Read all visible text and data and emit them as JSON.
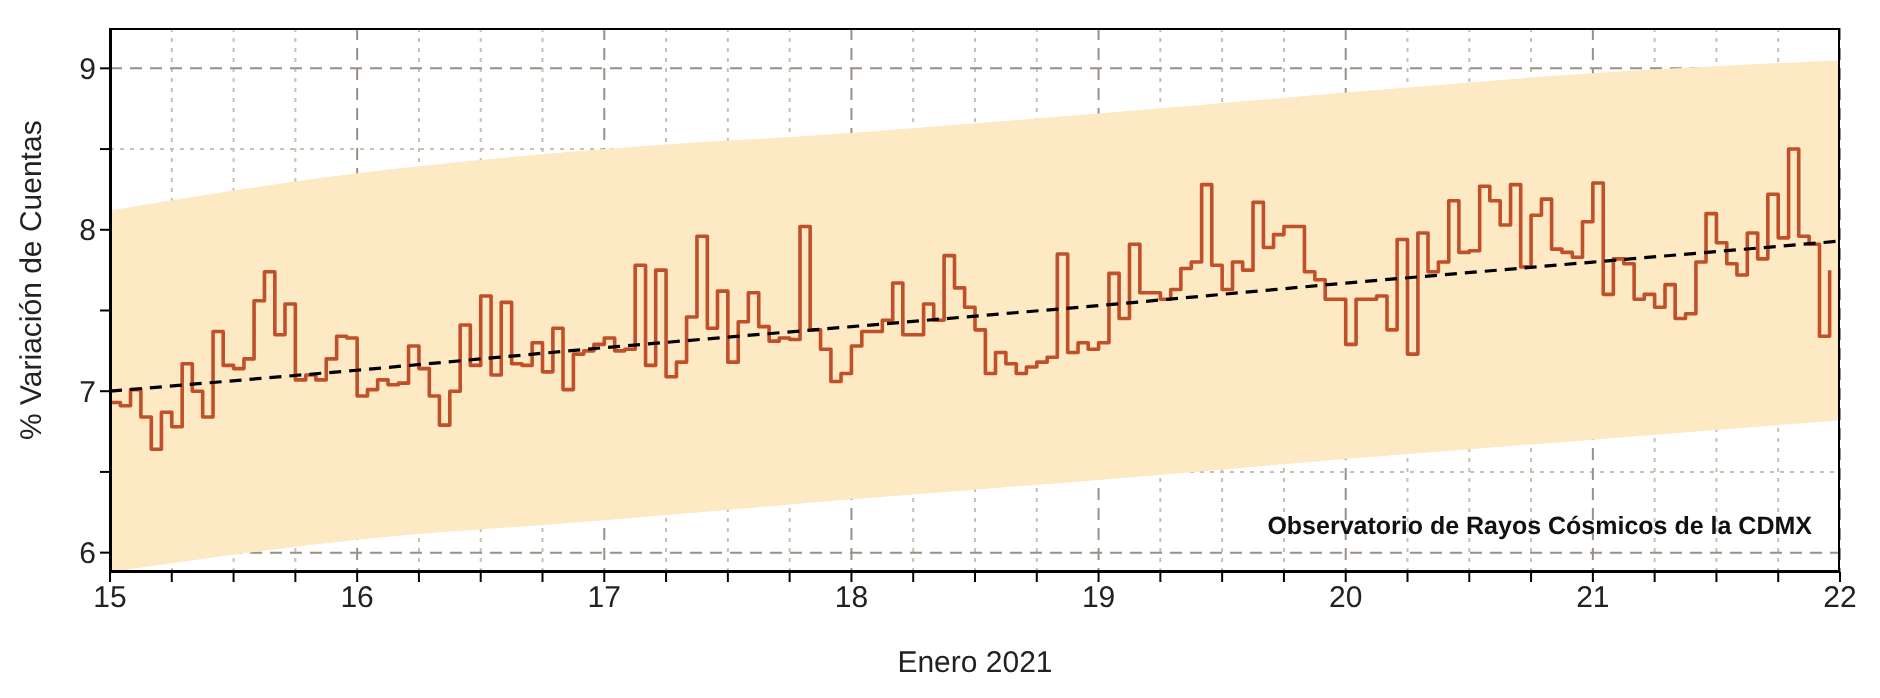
{
  "chart_data": {
    "type": "step",
    "xlabel": "Enero 2021",
    "ylabel": "% Variación de Cuentas",
    "xlim": [
      15,
      22
    ],
    "ylim": [
      5.88,
      9.25
    ],
    "xticks": [
      15,
      {
        "value": 15.25,
        "label": null
      },
      {
        "value": 15.5,
        "label": null
      },
      {
        "value": 15.75,
        "label": null
      },
      16,
      {
        "value": 16.25,
        "label": null
      },
      {
        "value": 16.5,
        "label": null
      },
      {
        "value": 16.75,
        "label": null
      },
      17,
      {
        "value": 17.25,
        "label": null
      },
      {
        "value": 17.5,
        "label": null
      },
      {
        "value": 17.75,
        "label": null
      },
      18,
      {
        "value": 18.25,
        "label": null
      },
      {
        "value": 18.5,
        "label": null
      },
      {
        "value": 18.75,
        "label": null
      },
      19,
      {
        "value": 19.25,
        "label": null
      },
      {
        "value": 19.5,
        "label": null
      },
      {
        "value": 19.75,
        "label": null
      },
      20,
      {
        "value": 20.25,
        "label": null
      },
      {
        "value": 20.5,
        "label": null
      },
      {
        "value": 20.75,
        "label": null
      },
      21,
      {
        "value": 21.25,
        "label": null
      },
      {
        "value": 21.5,
        "label": null
      },
      {
        "value": 21.75,
        "label": null
      },
      22
    ],
    "yticks": [
      6,
      {
        "value": 6.5,
        "label": null
      },
      7,
      {
        "value": 7.5,
        "label": null
      },
      8,
      {
        "value": 8.5,
        "label": null
      },
      9
    ],
    "grid": true,
    "annotations": [
      "Observatorio de Rayos Cósmicos de la CDMX"
    ],
    "series": [
      {
        "type": "line",
        "color": "#000000",
        "line_style": "dashed",
        "x": [
          15,
          16,
          17,
          18,
          19,
          20,
          21,
          22
        ],
        "values": [
          7.0,
          7.13,
          7.27,
          7.4,
          7.53,
          7.67,
          7.8,
          7.93
        ],
        "lower": [
          5.88,
          6.08,
          6.2,
          6.33,
          6.45,
          6.58,
          6.7,
          6.82
        ],
        "upper": [
          8.12,
          8.35,
          8.5,
          8.6,
          8.72,
          8.85,
          8.97,
          9.05
        ]
      },
      {
        "type": "step",
        "color": "#c0502a",
        "x": [
          15,
          15.042,
          15.083,
          15.125,
          15.167,
          15.208,
          15.25,
          15.292,
          15.333,
          15.375,
          15.417,
          15.458,
          15.5,
          15.542,
          15.583,
          15.625,
          15.667,
          15.708,
          15.75,
          15.792,
          15.833,
          15.875,
          15.917,
          15.958,
          16,
          16.042,
          16.083,
          16.125,
          16.167,
          16.208,
          16.25,
          16.292,
          16.333,
          16.375,
          16.417,
          16.458,
          16.5,
          16.542,
          16.583,
          16.625,
          16.667,
          16.708,
          16.75,
          16.792,
          16.833,
          16.875,
          16.917,
          16.958,
          17,
          17.042,
          17.083,
          17.125,
          17.167,
          17.208,
          17.25,
          17.292,
          17.333,
          17.375,
          17.417,
          17.458,
          17.5,
          17.542,
          17.583,
          17.625,
          17.667,
          17.708,
          17.75,
          17.792,
          17.833,
          17.875,
          17.917,
          17.958,
          18,
          18.042,
          18.083,
          18.125,
          18.167,
          18.208,
          18.25,
          18.292,
          18.333,
          18.375,
          18.417,
          18.458,
          18.5,
          18.542,
          18.583,
          18.625,
          18.667,
          18.708,
          18.75,
          18.792,
          18.833,
          18.875,
          18.917,
          18.958,
          19,
          19.042,
          19.083,
          19.125,
          19.167,
          19.208,
          19.25,
          19.292,
          19.333,
          19.375,
          19.417,
          19.458,
          19.5,
          19.542,
          19.583,
          19.625,
          19.667,
          19.708,
          19.75,
          19.792,
          19.833,
          19.875,
          19.917,
          19.958,
          20,
          20.042,
          20.083,
          20.125,
          20.167,
          20.208,
          20.25,
          20.292,
          20.333,
          20.375,
          20.417,
          20.458,
          20.5,
          20.542,
          20.583,
          20.625,
          20.667,
          20.708,
          20.75,
          20.792,
          20.833,
          20.875,
          20.917,
          20.958,
          21,
          21.042,
          21.083,
          21.125,
          21.167,
          21.208,
          21.25,
          21.292,
          21.333,
          21.375,
          21.417,
          21.458,
          21.5,
          21.542,
          21.583,
          21.625,
          21.667,
          21.708,
          21.75,
          21.792,
          21.833,
          21.875,
          21.917,
          21.958
        ],
        "values": [
          6.93,
          6.91,
          7.01,
          6.84,
          6.64,
          6.87,
          6.78,
          7.17,
          7.0,
          6.84,
          7.37,
          7.16,
          7.14,
          7.2,
          7.56,
          7.74,
          7.35,
          7.54,
          7.07,
          7.1,
          7.07,
          7.2,
          7.34,
          7.33,
          6.97,
          7.01,
          7.07,
          7.04,
          7.05,
          7.28,
          7.14,
          6.97,
          6.79,
          7.0,
          7.41,
          7.16,
          7.59,
          7.1,
          7.55,
          7.17,
          7.16,
          7.3,
          7.12,
          7.39,
          7.01,
          7.23,
          7.25,
          7.29,
          7.33,
          7.25,
          7.26,
          7.78,
          7.16,
          7.75,
          7.09,
          7.18,
          7.46,
          7.96,
          7.39,
          7.62,
          7.18,
          7.43,
          7.61,
          7.4,
          7.31,
          7.33,
          7.32,
          8.02,
          7.38,
          7.26,
          7.06,
          7.11,
          7.28,
          7.37,
          7.37,
          7.44,
          7.67,
          7.35,
          7.35,
          7.54,
          7.44,
          7.84,
          7.64,
          7.52,
          7.38,
          7.11,
          7.24,
          7.17,
          7.11,
          7.15,
          7.18,
          7.21,
          7.85,
          7.24,
          7.3,
          7.26,
          7.3,
          7.73,
          7.45,
          7.91,
          7.61,
          7.61,
          7.57,
          7.63,
          7.76,
          7.8,
          8.28,
          7.78,
          7.63,
          7.8,
          7.75,
          8.17,
          7.89,
          7.97,
          8.02,
          8.02,
          7.74,
          7.69,
          7.57,
          7.57,
          7.29,
          7.57,
          7.57,
          7.59,
          7.38,
          7.94,
          7.23,
          7.98,
          7.74,
          7.8,
          8.18,
          7.86,
          7.87,
          8.27,
          8.18,
          8.03,
          8.28,
          7.77,
          8.09,
          8.19,
          7.88,
          7.86,
          7.83,
          8.05,
          8.29,
          7.6,
          7.82,
          7.79,
          7.57,
          7.6,
          7.52,
          7.66,
          7.45,
          7.48,
          7.8,
          8.1,
          7.92,
          7.79,
          7.72,
          7.98,
          7.82,
          8.22,
          7.95,
          8.5,
          7.96,
          7.91,
          7.34,
          7.75
        ]
      }
    ]
  }
}
